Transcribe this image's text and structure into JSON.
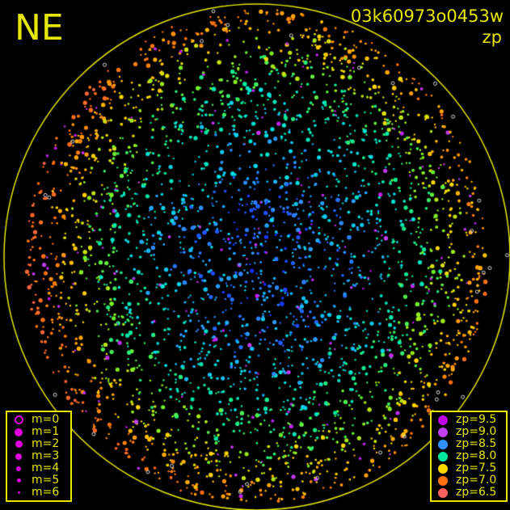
{
  "direction": "NE",
  "title": "03k60973o0453w",
  "subtitle": "zp",
  "colors": {
    "frame": "#e6e600",
    "background": "#000000",
    "magnitude_marker": "#e000e0"
  },
  "magnitude_legend": [
    {
      "label": "m=0",
      "style": "ring"
    },
    {
      "label": "m=1",
      "size": 5
    },
    {
      "label": "m=2",
      "size": 4.5
    },
    {
      "label": "m=3",
      "size": 4
    },
    {
      "label": "m=4",
      "size": 3
    },
    {
      "label": "m=5",
      "size": 2.5
    },
    {
      "label": "m=6",
      "size": 1.5
    }
  ],
  "zp_legend": [
    {
      "label": "zp=9.5",
      "color": "#c000f0"
    },
    {
      "label": "zp=9.0",
      "color": "#c040f0"
    },
    {
      "label": "zp=8.5",
      "color": "#3090ff"
    },
    {
      "label": "zp=8.0",
      "color": "#00e8a0"
    },
    {
      "label": "zp=7.5",
      "color": "#ffd800"
    },
    {
      "label": "zp=7.0",
      "color": "#ff7010"
    },
    {
      "label": "zp=6.5",
      "color": "#ff6060"
    }
  ]
}
